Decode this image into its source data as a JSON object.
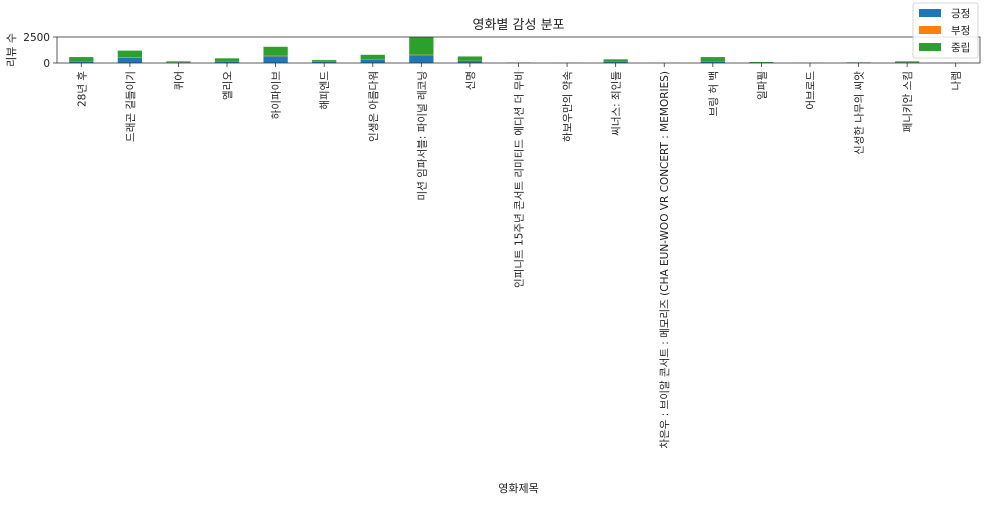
{
  "chart_data": {
    "type": "bar",
    "stacked": true,
    "title": "영화별 감성 분포",
    "xlabel": "영화제목",
    "ylabel": "리뷰 수",
    "ylim": [
      0,
      2500
    ],
    "yticks": [
      0,
      2500
    ],
    "grid": false,
    "legend_position": "top-right",
    "categories": [
      "28년 후",
      "드래곤 길들이기",
      "퀴어",
      "엘리오",
      "하이파이브",
      "해피엔드",
      "인생은 아름다워",
      "미션 임파서블: 파이널 레코닝",
      "신명",
      "인피니트 15주년 콘서트 리미티드 에디션 더 무비",
      "하보우만의 약속",
      "씨너스: 죄인들",
      "차은우 : 브이알 콘서트 : 메모리즈 (CHA EUN-WOO VR CONCERT : MEMORIES)",
      "브링 허 백",
      "일파필",
      "어브로드",
      "신성한 나무의 씨앗",
      "페니키안 스킴",
      "나렘"
    ],
    "series": [
      {
        "name": "긍정",
        "color": "#1f77b4",
        "values": [
          170,
          500,
          60,
          150,
          650,
          110,
          300,
          720,
          190,
          30,
          5,
          140,
          3,
          170,
          30,
          10,
          20,
          50,
          5
        ]
      },
      {
        "name": "부정",
        "color": "#ff7f0e",
        "values": [
          20,
          40,
          10,
          20,
          60,
          10,
          30,
          80,
          20,
          5,
          1,
          15,
          1,
          20,
          5,
          2,
          5,
          10,
          1
        ]
      },
      {
        "name": "중립",
        "color": "#2ca02c",
        "values": [
          380,
          650,
          90,
          280,
          850,
          160,
          460,
          1700,
          420,
          15,
          4,
          200,
          1,
          380,
          60,
          8,
          40,
          100,
          4
        ]
      }
    ]
  }
}
